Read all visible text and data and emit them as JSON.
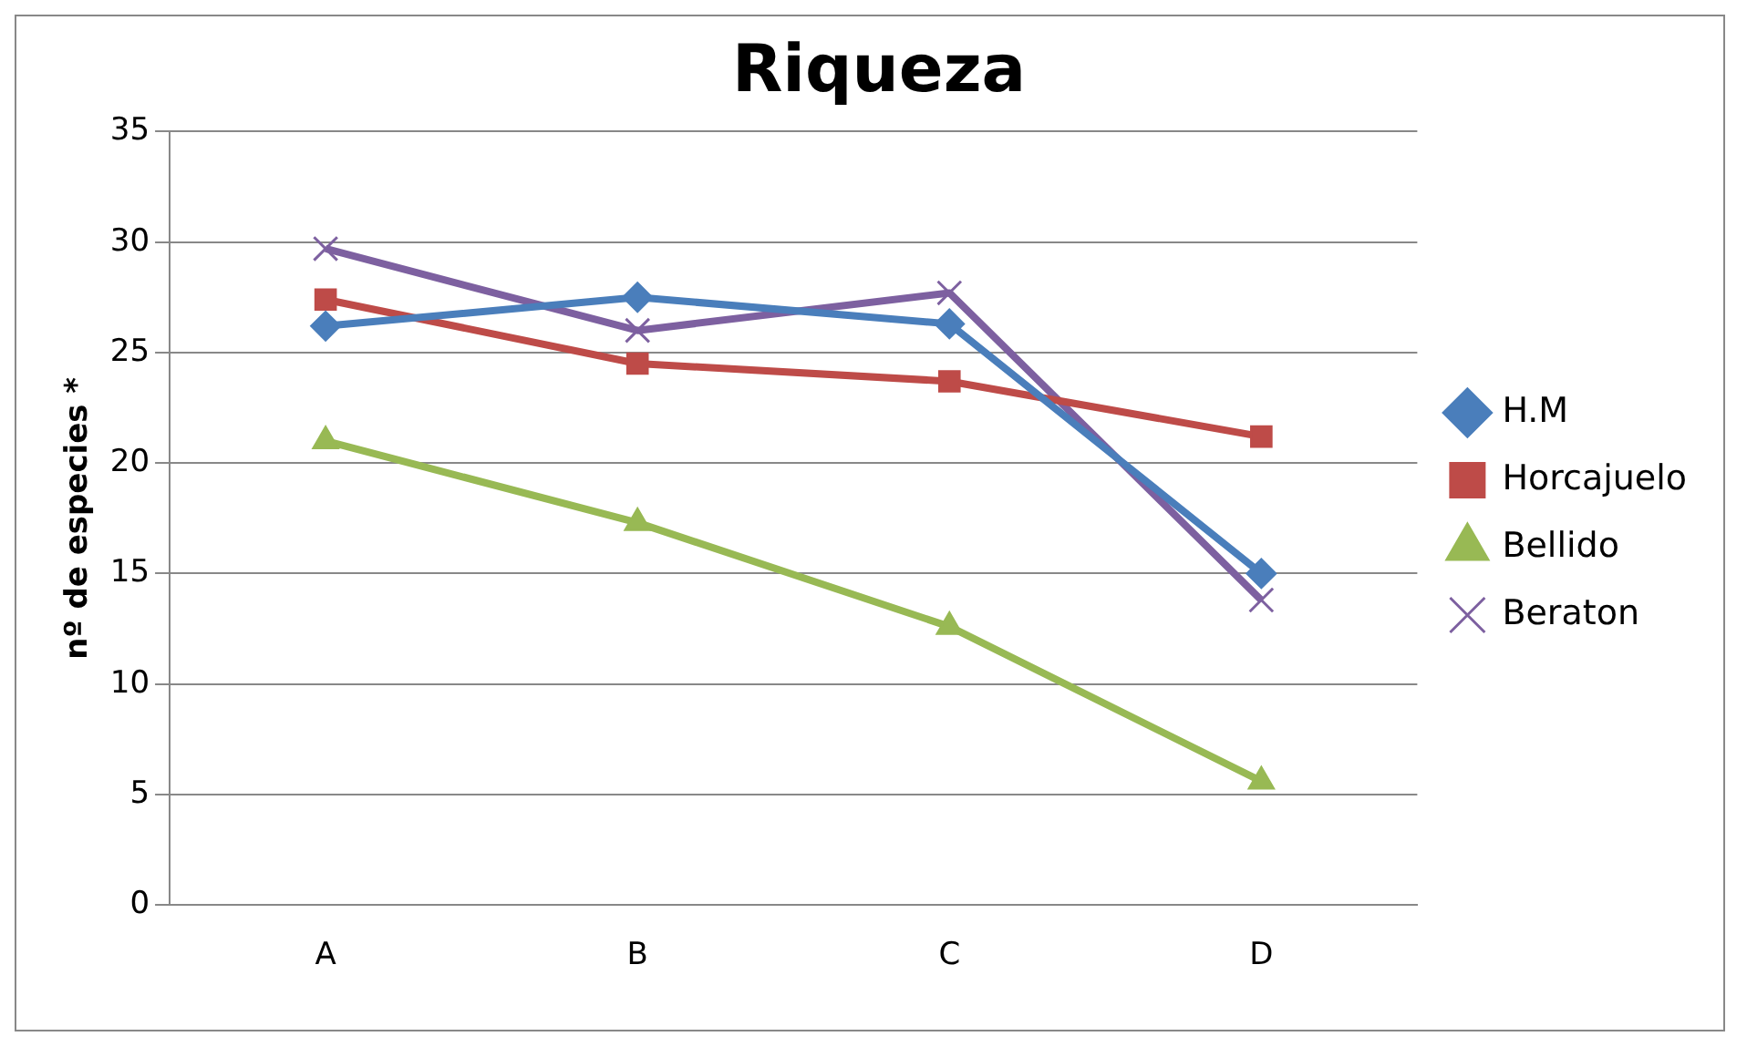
{
  "chart_data": {
    "type": "line",
    "title": "Riqueza",
    "ylabel": "nº de especies *",
    "categories": [
      "A",
      "B",
      "C",
      "D"
    ],
    "series": [
      {
        "name": "H.M",
        "color": "#4a7ebb",
        "values": [
          26.2,
          27.5,
          26.3,
          15
        ],
        "marker": "diamond"
      },
      {
        "name": "Horcajuelo",
        "color": "#be4b48",
        "values": [
          27.4,
          24.5,
          23.7,
          21.2
        ],
        "marker": "square"
      },
      {
        "name": "Bellido",
        "color": "#98b954",
        "values": [
          21,
          17.3,
          12.6,
          5.6
        ],
        "marker": "triangle"
      },
      {
        "name": "Beraton",
        "color": "#7d60a0",
        "values": [
          29.7,
          26,
          27.7,
          13.8
        ],
        "marker": "cross"
      }
    ],
    "ylim": [
      0,
      35
    ],
    "yticks": [
      0,
      5,
      10,
      15,
      20,
      25,
      30,
      35
    ],
    "grid": "y",
    "legend": "right",
    "line_style": "solid"
  }
}
